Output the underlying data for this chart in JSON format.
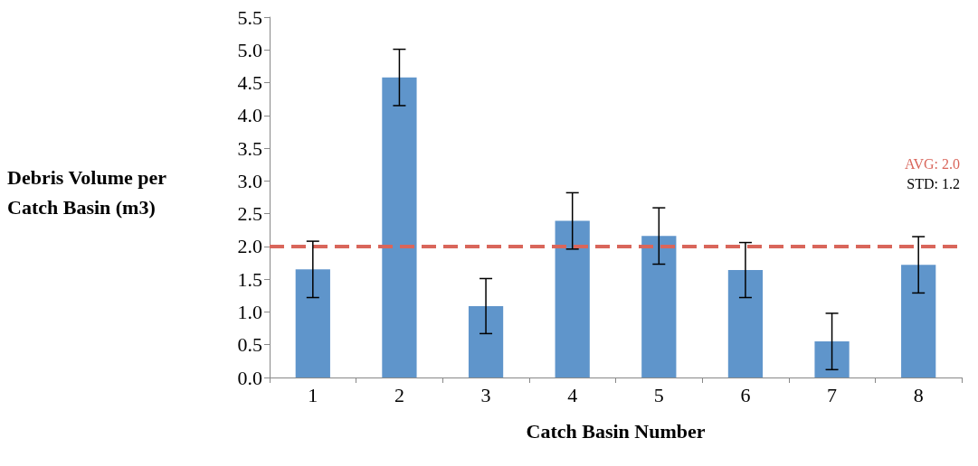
{
  "chart_data": {
    "type": "bar",
    "xlabel": "Catch Basin Number",
    "ylabel": "Debris Volume per Catch Basin (m3)",
    "categories": [
      "1",
      "2",
      "3",
      "4",
      "5",
      "6",
      "7",
      "8"
    ],
    "values": [
      1.65,
      4.58,
      1.09,
      2.39,
      2.16,
      1.64,
      0.55,
      1.72
    ],
    "errors": [
      0.43,
      0.43,
      0.42,
      0.43,
      0.43,
      0.42,
      0.43,
      0.43
    ],
    "color": "#5f95cb",
    "ylim": [
      0,
      5.5
    ],
    "yticks": [
      {
        "value": 0,
        "label": "0.0"
      },
      {
        "value": 0.5,
        "label": "0.5"
      },
      {
        "value": 1,
        "label": "1.0"
      },
      {
        "value": 1.5,
        "label": "1.5"
      },
      {
        "value": 2,
        "label": "2.0"
      },
      {
        "value": 2.5,
        "label": "2.5"
      },
      {
        "value": 3,
        "label": "3.0"
      },
      {
        "value": 3.5,
        "label": "3.5"
      },
      {
        "value": 4,
        "label": "4.0"
      },
      {
        "value": 4.5,
        "label": "4.5"
      },
      {
        "value": 5,
        "label": "5.0"
      },
      {
        "value": 5.5,
        "label": "5.5"
      }
    ],
    "ref_lines": [
      {
        "axis": "y",
        "value": 2.0,
        "label": "AVG: 2.0",
        "color": "#d9665b",
        "line_style": "dashed"
      }
    ],
    "annotations": [
      "STD: 1.2"
    ],
    "grid": false
  }
}
